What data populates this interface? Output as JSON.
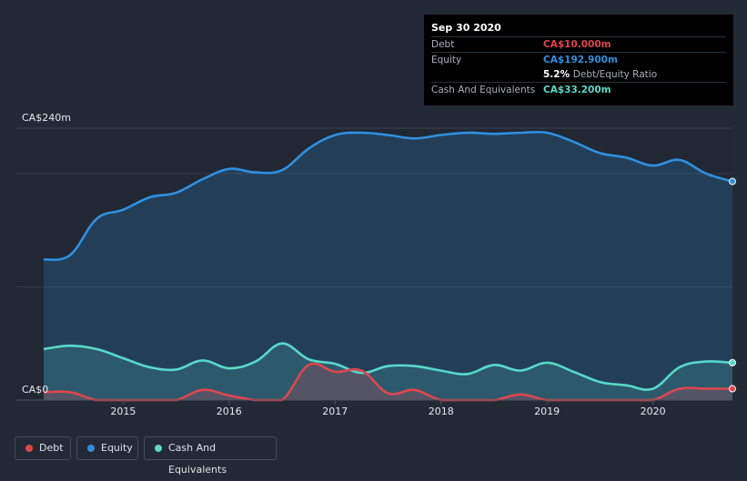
{
  "tooltip": {
    "date": "Sep 30 2020",
    "rows": [
      {
        "label": "Debt",
        "value": "CA$10.000m",
        "color": "#e0454d"
      },
      {
        "label": "Equity",
        "value": "CA$192.900m",
        "color": "#2f90e0"
      },
      {
        "label": "Cash And Equivalents",
        "value": "CA$33.200m",
        "color": "#58d9c9"
      }
    ],
    "ratio_value": "5.2%",
    "ratio_label": "Debt/Equity Ratio"
  },
  "legend": [
    {
      "label": "Debt",
      "color": "#e0454d"
    },
    {
      "label": "Equity",
      "color": "#2f90e0"
    },
    {
      "label": "Cash And Equivalents",
      "color": "#58d9c9"
    }
  ],
  "chart_data": {
    "type": "area",
    "currency_unit": "CA$m",
    "y_tick_labels": [
      "CA$240m",
      "CA$0"
    ],
    "ylim": [
      0,
      240
    ],
    "xlim": [
      2014.25,
      2020.75
    ],
    "x_tick_labels": [
      "2015",
      "2016",
      "2017",
      "2018",
      "2019",
      "2020"
    ],
    "x_ticks": [
      2015,
      2016,
      2017,
      2018,
      2019,
      2020
    ],
    "grid": true,
    "series": [
      {
        "name": "Equity",
        "color": "#2f90e0",
        "x": [
          2014.25,
          2014.5,
          2014.75,
          2015.0,
          2015.25,
          2015.5,
          2015.75,
          2016.0,
          2016.25,
          2016.5,
          2016.75,
          2017.0,
          2017.25,
          2017.5,
          2017.75,
          2018.0,
          2018.25,
          2018.5,
          2018.75,
          2019.0,
          2019.25,
          2019.5,
          2019.75,
          2020.0,
          2020.25,
          2020.5,
          2020.75
        ],
        "values": [
          124,
          128,
          160,
          168,
          179,
          183,
          195,
          204,
          201,
          203,
          222,
          234,
          236,
          234,
          231,
          234,
          236,
          235,
          236,
          236,
          228,
          218,
          214,
          207,
          212,
          200,
          193
        ]
      },
      {
        "name": "Cash And Equivalents",
        "color": "#58d9c9",
        "x": [
          2014.25,
          2014.5,
          2014.75,
          2015.0,
          2015.25,
          2015.5,
          2015.75,
          2016.0,
          2016.25,
          2016.5,
          2016.75,
          2017.0,
          2017.25,
          2017.5,
          2017.75,
          2018.0,
          2018.25,
          2018.5,
          2018.75,
          2019.0,
          2019.25,
          2019.5,
          2019.75,
          2020.0,
          2020.25,
          2020.5,
          2020.75
        ],
        "values": [
          45,
          48,
          45,
          37,
          29,
          27,
          35,
          28,
          34,
          50,
          36,
          32,
          24,
          30,
          30,
          26,
          23,
          31,
          26,
          33,
          25,
          16,
          13,
          10,
          29,
          34,
          33
        ]
      },
      {
        "name": "Debt",
        "color": "#e0454d",
        "x": [
          2014.25,
          2014.5,
          2014.75,
          2015.0,
          2015.25,
          2015.5,
          2015.75,
          2016.0,
          2016.25,
          2016.5,
          2016.75,
          2017.0,
          2017.25,
          2017.5,
          2017.75,
          2018.0,
          2018.25,
          2018.5,
          2018.75,
          2019.0,
          2019.25,
          2019.5,
          2019.75,
          2020.0,
          2020.25,
          2020.5,
          2020.75
        ],
        "values": [
          7,
          7,
          0,
          0,
          0,
          0,
          9,
          4,
          0,
          0,
          31,
          25,
          26,
          6,
          9,
          0,
          0,
          0,
          5,
          0,
          0,
          0,
          0,
          0,
          10,
          10,
          10
        ]
      }
    ]
  }
}
